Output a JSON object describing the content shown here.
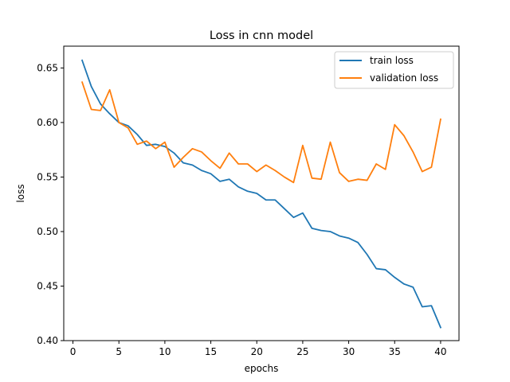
{
  "chart_data": {
    "type": "line",
    "title": "Loss in cnn model",
    "xlabel": "epochs",
    "ylabel": "loss",
    "xlim": [
      -1,
      42
    ],
    "ylim": [
      0.4,
      0.67
    ],
    "xticks": [
      0,
      5,
      10,
      15,
      20,
      25,
      30,
      35,
      40
    ],
    "xtick_labels": [
      "0",
      "5",
      "10",
      "15",
      "20",
      "25",
      "30",
      "35",
      "40"
    ],
    "yticks": [
      0.4,
      0.45,
      0.5,
      0.55,
      0.6,
      0.65
    ],
    "ytick_labels": [
      "0.40",
      "0.45",
      "0.50",
      "0.55",
      "0.60",
      "0.65"
    ],
    "grid": false,
    "legend_position": "top-right",
    "x": [
      1,
      2,
      3,
      4,
      5,
      6,
      7,
      8,
      9,
      10,
      11,
      12,
      13,
      14,
      15,
      16,
      17,
      18,
      19,
      20,
      21,
      22,
      23,
      24,
      25,
      26,
      27,
      28,
      29,
      30,
      31,
      32,
      33,
      34,
      35,
      36,
      37,
      38,
      39,
      40
    ],
    "series": [
      {
        "name": "train loss",
        "color": "#1f77b4",
        "values": [
          0.657,
          0.633,
          0.617,
          0.608,
          0.6,
          0.597,
          0.589,
          0.579,
          0.58,
          0.578,
          0.572,
          0.563,
          0.561,
          0.556,
          0.553,
          0.546,
          0.548,
          0.541,
          0.537,
          0.535,
          0.529,
          0.529,
          0.521,
          0.513,
          0.517,
          0.503,
          0.501,
          0.5,
          0.496,
          0.494,
          0.49,
          0.479,
          0.466,
          0.465,
          0.458,
          0.452,
          0.449,
          0.431,
          0.432,
          0.412
        ]
      },
      {
        "name": "validation loss",
        "color": "#ff7f0e",
        "values": [
          0.637,
          0.612,
          0.611,
          0.63,
          0.6,
          0.595,
          0.58,
          0.583,
          0.576,
          0.582,
          0.559,
          0.568,
          0.576,
          0.573,
          0.565,
          0.558,
          0.572,
          0.562,
          0.562,
          0.555,
          0.561,
          0.556,
          0.55,
          0.545,
          0.579,
          0.549,
          0.548,
          0.582,
          0.554,
          0.546,
          0.548,
          0.547,
          0.562,
          0.557,
          0.598,
          0.588,
          0.573,
          0.555,
          0.559,
          0.603
        ]
      }
    ]
  }
}
